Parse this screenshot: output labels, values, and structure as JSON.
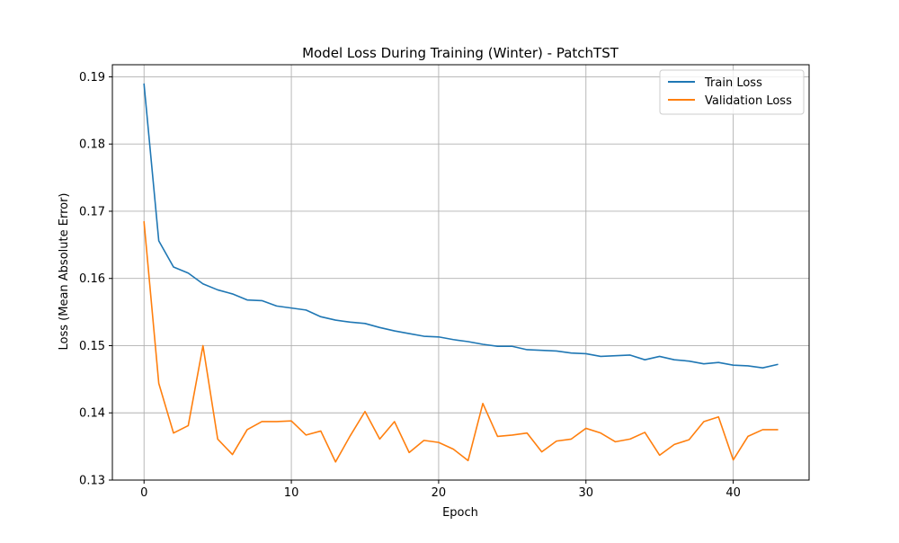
{
  "chart_data": {
    "type": "line",
    "title": "Model Loss During Training (Winter) - PatchTST",
    "xlabel": "Epoch",
    "ylabel": "Loss (Mean Absolute Error)",
    "xlim": [
      -2.15,
      45.15
    ],
    "ylim": [
      0.13,
      0.1918
    ],
    "x_ticks": [
      0,
      10,
      20,
      30,
      40
    ],
    "y_ticks": [
      0.13,
      0.14,
      0.15,
      0.16,
      0.17,
      0.18,
      0.19
    ],
    "grid": true,
    "legend_position": "top-right",
    "x": [
      0,
      1,
      2,
      3,
      4,
      5,
      6,
      7,
      8,
      9,
      10,
      11,
      12,
      13,
      14,
      15,
      16,
      17,
      18,
      19,
      20,
      21,
      22,
      23,
      24,
      25,
      26,
      27,
      28,
      29,
      30,
      31,
      32,
      33,
      34,
      35,
      36,
      37,
      38,
      39,
      40,
      41,
      42,
      43
    ],
    "series": [
      {
        "name": "Train Loss",
        "color": "#1f77b4",
        "values": [
          0.1889,
          0.1656,
          0.1617,
          0.1608,
          0.1592,
          0.1583,
          0.1577,
          0.1568,
          0.1567,
          0.1559,
          0.1556,
          0.1553,
          0.1543,
          0.1538,
          0.1535,
          0.1533,
          0.1527,
          0.1522,
          0.1518,
          0.1514,
          0.1513,
          0.1509,
          0.1506,
          0.1502,
          0.1499,
          0.1499,
          0.1494,
          0.1493,
          0.1492,
          0.1489,
          0.1488,
          0.1484,
          0.1485,
          0.1486,
          0.1479,
          0.1484,
          0.1479,
          0.1477,
          0.1473,
          0.1475,
          0.1471,
          0.147,
          0.1467,
          0.1472
        ]
      },
      {
        "name": "Validation Loss",
        "color": "#ff7f0e",
        "values": [
          0.1684,
          0.1444,
          0.137,
          0.1381,
          0.15,
          0.1361,
          0.1338,
          0.1375,
          0.1387,
          0.1387,
          0.1388,
          0.1367,
          0.1373,
          0.1327,
          0.1366,
          0.1402,
          0.1361,
          0.1387,
          0.1341,
          0.1359,
          0.1356,
          0.1346,
          0.1329,
          0.1414,
          0.1365,
          0.1367,
          0.137,
          0.1342,
          0.1358,
          0.1361,
          0.1377,
          0.137,
          0.1357,
          0.1361,
          0.1371,
          0.1337,
          0.1353,
          0.136,
          0.1387,
          0.1394,
          0.133,
          0.1365,
          0.1375,
          0.1375
        ]
      }
    ]
  }
}
